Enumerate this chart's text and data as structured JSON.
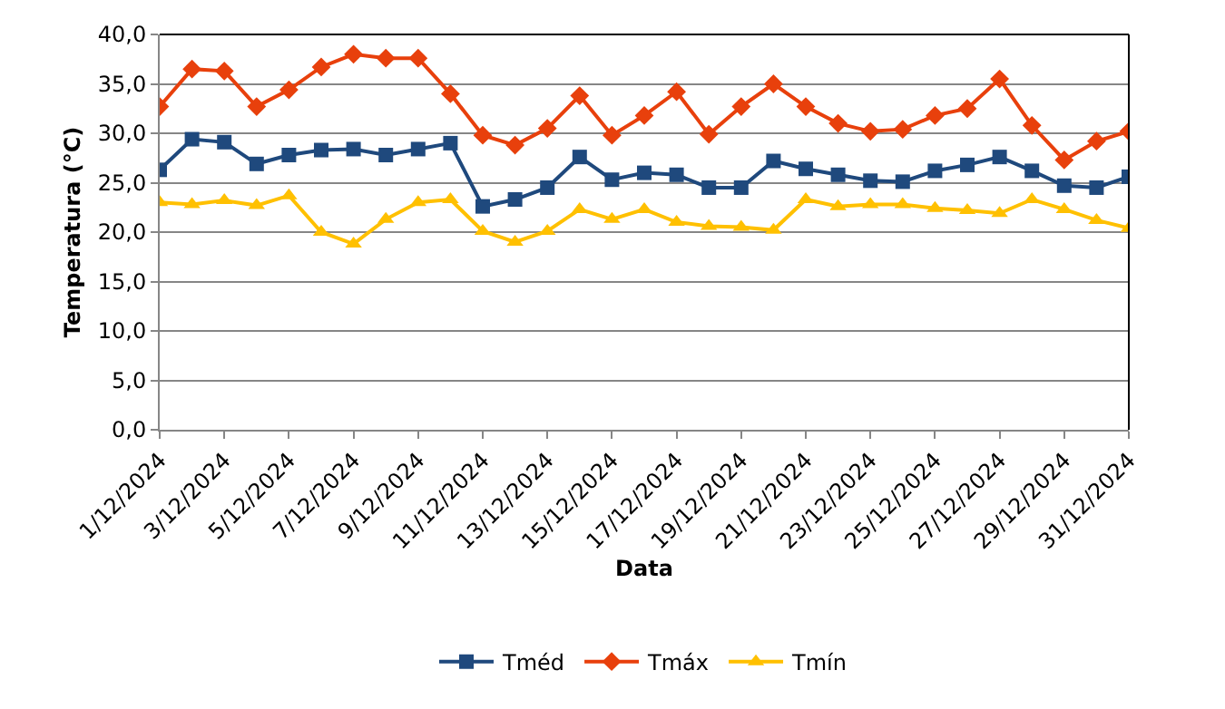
{
  "chart_data": {
    "type": "line",
    "xlabel": "Data",
    "ylabel": "Temperatura (°C)",
    "x": [
      "2024-12-01",
      "2024-12-02",
      "2024-12-03",
      "2024-12-04",
      "2024-12-05",
      "2024-12-06",
      "2024-12-07",
      "2024-12-08",
      "2024-12-09",
      "2024-12-10",
      "2024-12-11",
      "2024-12-12",
      "2024-12-13",
      "2024-12-14",
      "2024-12-15",
      "2024-12-16",
      "2024-12-17",
      "2024-12-18",
      "2024-12-19",
      "2024-12-20",
      "2024-12-21",
      "2024-12-22",
      "2024-12-23",
      "2024-12-24",
      "2024-12-25",
      "2024-12-26",
      "2024-12-27",
      "2024-12-28",
      "2024-12-29",
      "2024-12-30",
      "2024-12-31"
    ],
    "series": [
      {
        "name": "Tméd",
        "color": "#1f497d",
        "marker": "square",
        "values": [
          26.3,
          29.4,
          29.1,
          26.9,
          27.8,
          28.3,
          28.4,
          27.8,
          28.4,
          29.0,
          22.6,
          23.3,
          24.5,
          27.6,
          25.3,
          26.0,
          25.8,
          24.5,
          24.5,
          27.2,
          26.4,
          25.8,
          25.2,
          25.1,
          26.2,
          26.8,
          27.6,
          26.2,
          24.7,
          24.5,
          25.6
        ]
      },
      {
        "name": "Tmáx",
        "color": "#e8400c",
        "marker": "diamond",
        "values": [
          32.7,
          36.5,
          36.3,
          32.7,
          34.4,
          36.7,
          38.0,
          37.6,
          37.6,
          34.0,
          29.8,
          28.8,
          30.5,
          33.8,
          29.8,
          31.8,
          34.2,
          29.9,
          32.7,
          35.0,
          32.7,
          31.0,
          30.2,
          30.4,
          31.8,
          32.5,
          35.5,
          30.8,
          27.3,
          29.2,
          30.2
        ]
      },
      {
        "name": "Tmín",
        "color": "#ffc000",
        "marker": "triangle",
        "values": [
          23.0,
          22.8,
          23.2,
          22.7,
          23.7,
          20.0,
          18.8,
          21.3,
          23.0,
          23.3,
          20.1,
          19.0,
          20.1,
          22.3,
          21.3,
          22.3,
          21.0,
          20.6,
          20.5,
          20.2,
          23.3,
          22.6,
          22.8,
          22.8,
          22.4,
          22.2,
          21.9,
          23.3,
          22.3,
          21.2,
          20.4
        ]
      }
    ],
    "xlim": [
      "2024-12-01",
      "2024-12-31"
    ],
    "xticks": [
      {
        "value": "2024-12-01",
        "label": "1/12/2024"
      },
      {
        "value": "2024-12-03",
        "label": "3/12/2024"
      },
      {
        "value": "2024-12-05",
        "label": "5/12/2024"
      },
      {
        "value": "2024-12-07",
        "label": "7/12/2024"
      },
      {
        "value": "2024-12-09",
        "label": "9/12/2024"
      },
      {
        "value": "2024-12-11",
        "label": "11/12/2024"
      },
      {
        "value": "2024-12-13",
        "label": "13/12/2024"
      },
      {
        "value": "2024-12-15",
        "label": "15/12/2024"
      },
      {
        "value": "2024-12-17",
        "label": "17/12/2024"
      },
      {
        "value": "2024-12-19",
        "label": "19/12/2024"
      },
      {
        "value": "2024-12-21",
        "label": "21/12/2024"
      },
      {
        "value": "2024-12-23",
        "label": "23/12/2024"
      },
      {
        "value": "2024-12-25",
        "label": "25/12/2024"
      },
      {
        "value": "2024-12-27",
        "label": "27/12/2024"
      },
      {
        "value": "2024-12-29",
        "label": "29/12/2024"
      },
      {
        "value": "2024-12-31",
        "label": "31/12/2024"
      }
    ],
    "ylim": [
      0,
      40
    ],
    "yticks": [
      {
        "value": 0,
        "label": "0,0"
      },
      {
        "value": 5,
        "label": "5,0"
      },
      {
        "value": 10,
        "label": "10,0"
      },
      {
        "value": 15,
        "label": "15,0"
      },
      {
        "value": 20,
        "label": "20,0"
      },
      {
        "value": 25,
        "label": "25,0"
      },
      {
        "value": 30,
        "label": "30,0"
      },
      {
        "value": 35,
        "label": "35,0"
      },
      {
        "value": 40,
        "label": "40,0"
      }
    ],
    "grid": "y",
    "legend": "bottom",
    "line_style": "solid"
  }
}
